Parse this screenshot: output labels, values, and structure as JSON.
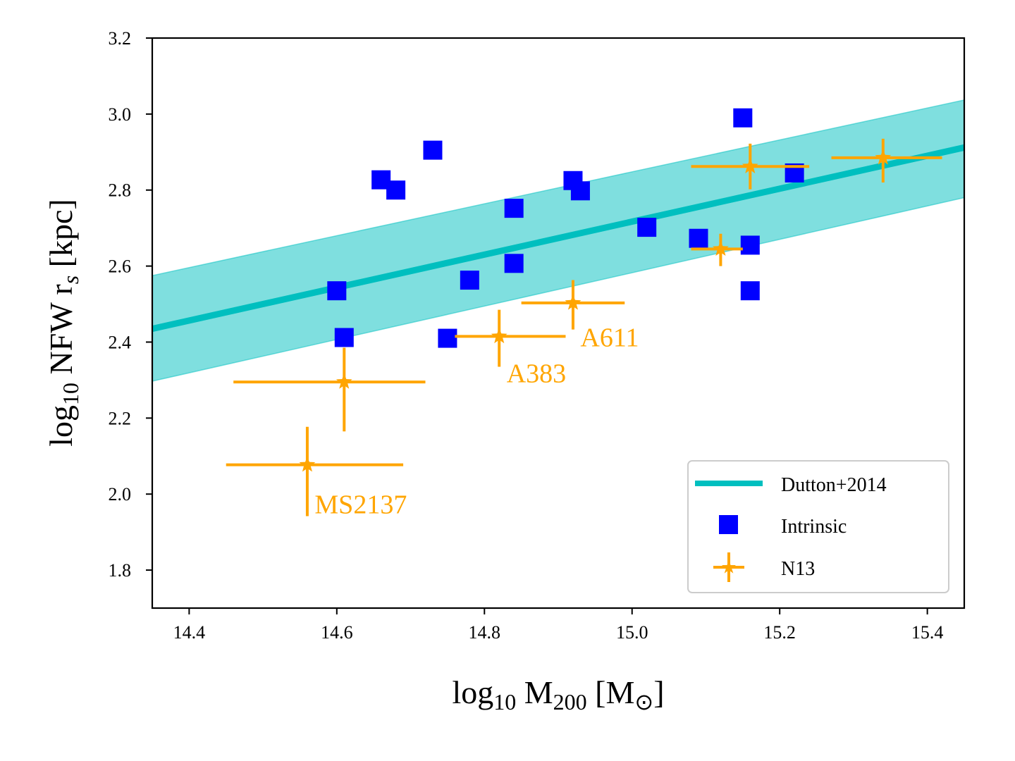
{
  "chart_data": {
    "type": "scatter",
    "xlabel": {
      "base": "log",
      "sub": "10",
      "main": " M",
      "sub2": "200",
      "bracket_open": " [M",
      "symbol": "⊙",
      "bracket_close": "]"
    },
    "ylabel": {
      "base": "log",
      "sub": "10",
      "main": " NFW r",
      "sub2": "s",
      "tail": " [kpc]"
    },
    "xlim": [
      14.35,
      15.45
    ],
    "ylim": [
      1.7,
      3.2
    ],
    "xticks": [
      14.4,
      14.6,
      14.8,
      15.0,
      15.2,
      15.4
    ],
    "xtick_labels": [
      "14.4",
      "14.6",
      "14.8",
      "15.0",
      "15.2",
      "15.4"
    ],
    "yticks": [
      1.8,
      2.0,
      2.2,
      2.4,
      2.6,
      2.8,
      3.0,
      3.2
    ],
    "ytick_labels": [
      "1.8",
      "2.0",
      "2.2",
      "2.4",
      "2.6",
      "2.8",
      "3.0",
      "3.2"
    ],
    "colors": {
      "relation": "#00bfbf",
      "band": "#7fdfdf",
      "intrinsic": "#0000ff",
      "n13": "#ffa500"
    },
    "series": [
      {
        "name": "Dutton+2014",
        "kind": "line",
        "x": [
          14.35,
          15.45
        ],
        "y": [
          2.435,
          2.912
        ],
        "band_lower": [
          2.297,
          2.78
        ],
        "band_upper": [
          2.575,
          3.037
        ]
      },
      {
        "name": "Intrinsic",
        "kind": "points",
        "points": [
          {
            "x": 14.6,
            "y": 2.535
          },
          {
            "x": 14.61,
            "y": 2.412
          },
          {
            "x": 14.66,
            "y": 2.827
          },
          {
            "x": 14.68,
            "y": 2.8
          },
          {
            "x": 14.73,
            "y": 2.905
          },
          {
            "x": 14.75,
            "y": 2.41
          },
          {
            "x": 14.78,
            "y": 2.563
          },
          {
            "x": 14.84,
            "y": 2.752
          },
          {
            "x": 14.84,
            "y": 2.607
          },
          {
            "x": 14.92,
            "y": 2.825
          },
          {
            "x": 14.93,
            "y": 2.798
          },
          {
            "x": 15.02,
            "y": 2.702
          },
          {
            "x": 15.09,
            "y": 2.673
          },
          {
            "x": 15.15,
            "y": 2.99
          },
          {
            "x": 15.16,
            "y": 2.655
          },
          {
            "x": 15.16,
            "y": 2.535
          },
          {
            "x": 15.22,
            "y": 2.845
          }
        ]
      },
      {
        "name": "N13",
        "kind": "errorbar",
        "points": [
          {
            "x": 14.56,
            "y": 2.077,
            "xerr": [
              0.11,
              0.13
            ],
            "yerr": [
              0.135,
              0.1
            ]
          },
          {
            "x": 14.61,
            "y": 2.295,
            "xerr": [
              0.15,
              0.11
            ],
            "yerr": [
              0.13,
              0.09
            ]
          },
          {
            "x": 14.82,
            "y": 2.415,
            "xerr": [
              0.06,
              0.09
            ],
            "yerr": [
              0.08,
              0.07
            ]
          },
          {
            "x": 14.92,
            "y": 2.503,
            "xerr": [
              0.07,
              0.07
            ],
            "yerr": [
              0.07,
              0.06
            ]
          },
          {
            "x": 15.12,
            "y": 2.645,
            "xerr": [
              0.04,
              0.03
            ],
            "yerr": [
              0.045,
              0.04
            ]
          },
          {
            "x": 15.16,
            "y": 2.862,
            "xerr": [
              0.08,
              0.08
            ],
            "yerr": [
              0.06,
              0.06
            ]
          },
          {
            "x": 15.34,
            "y": 2.885,
            "xerr": [
              0.07,
              0.08
            ],
            "yerr": [
              0.065,
              0.05
            ]
          }
        ]
      }
    ],
    "annotations": [
      {
        "text": "MS2137",
        "x": 14.57,
        "y": 1.975
      },
      {
        "text": "A383",
        "x": 14.83,
        "y": 2.32
      },
      {
        "text": "A611",
        "x": 14.93,
        "y": 2.415
      }
    ],
    "legend": {
      "position": "lower right",
      "entries": [
        "Dutton+2014",
        "Intrinsic",
        "N13"
      ]
    }
  }
}
